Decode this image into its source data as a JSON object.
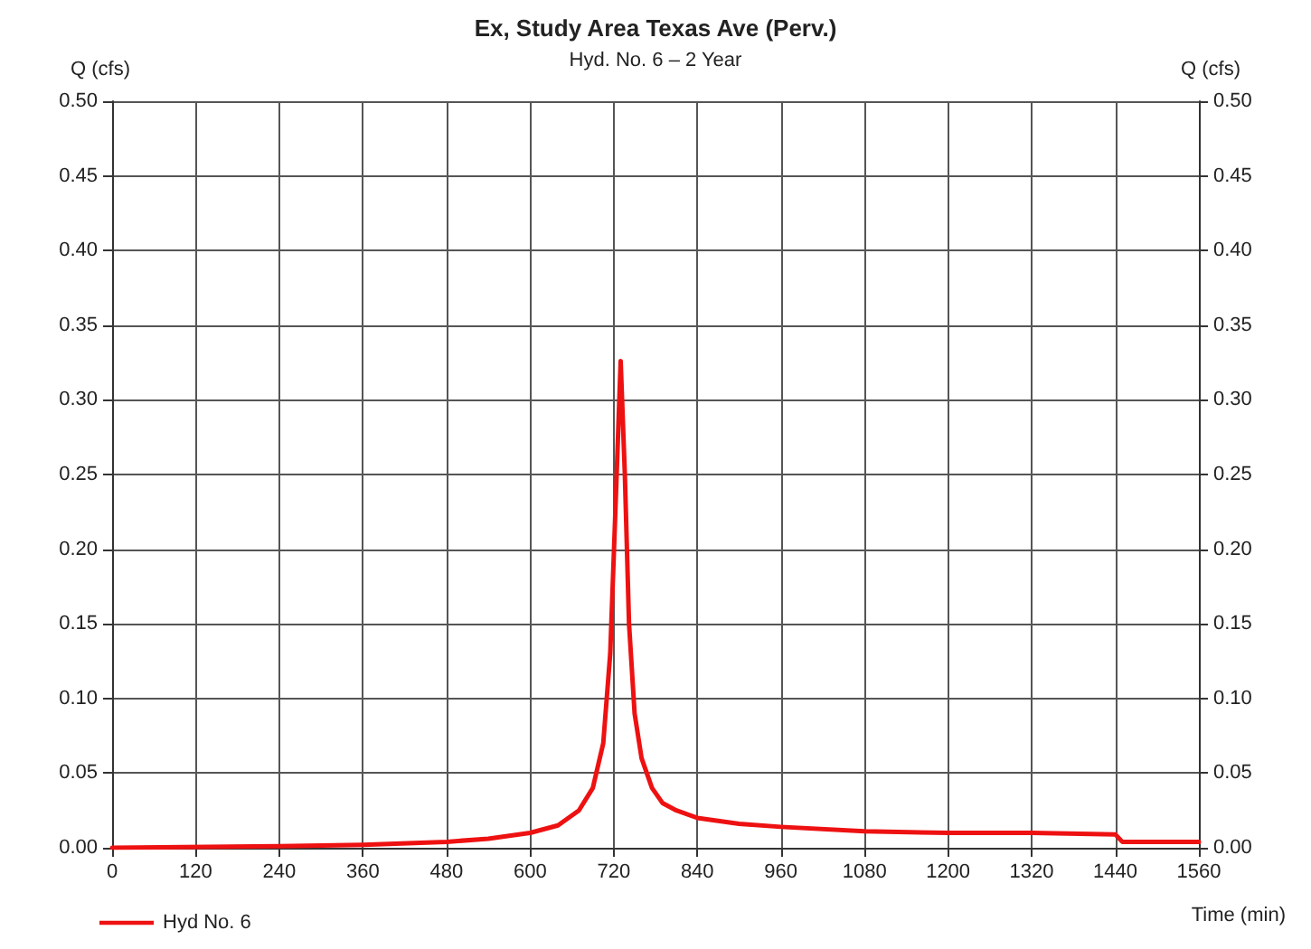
{
  "chart_data": {
    "type": "line",
    "title": "Ex, Study Area Texas Ave (Perv.)",
    "subtitle": "Hyd. No. 6 – 2 Year",
    "xlabel": "Time (min)",
    "ylabel": "Q (cfs)",
    "y2label": "Q (cfs)",
    "xlim": [
      0,
      1560
    ],
    "xticks": [
      0,
      120,
      240,
      360,
      480,
      600,
      720,
      840,
      960,
      1080,
      1200,
      1320,
      1440,
      1560
    ],
    "ylim": [
      0,
      0.5
    ],
    "yticks": [
      {
        "value": 0,
        "label": "0.00"
      },
      {
        "value": 0.05,
        "label": "0.05"
      },
      {
        "value": 0.1,
        "label": "0.10"
      },
      {
        "value": 0.15,
        "label": "0.15"
      },
      {
        "value": 0.2,
        "label": "0.20"
      },
      {
        "value": 0.25,
        "label": "0.25"
      },
      {
        "value": 0.3,
        "label": "0.30"
      },
      {
        "value": 0.35,
        "label": "0.35"
      },
      {
        "value": 0.4,
        "label": "0.40"
      },
      {
        "value": 0.45,
        "label": "0.45"
      },
      {
        "value": 0.5,
        "label": "0.50"
      }
    ],
    "y2lim": [
      0,
      0.5
    ],
    "y2ticks": [
      {
        "value": 0,
        "label": "0.00"
      },
      {
        "value": 0.05,
        "label": "0.05"
      },
      {
        "value": 0.1,
        "label": "0.10"
      },
      {
        "value": 0.15,
        "label": "0.15"
      },
      {
        "value": 0.2,
        "label": "0.20"
      },
      {
        "value": 0.25,
        "label": "0.25"
      },
      {
        "value": 0.3,
        "label": "0.30"
      },
      {
        "value": 0.35,
        "label": "0.35"
      },
      {
        "value": 0.4,
        "label": "0.40"
      },
      {
        "value": 0.45,
        "label": "0.45"
      },
      {
        "value": 0.5,
        "label": "0.50"
      }
    ],
    "grid": true,
    "legend": "bottom left",
    "marker": "none",
    "line_style": "solid",
    "series": [
      {
        "name": "Hyd No. 6",
        "color": "#ee1111",
        "x": [
          0,
          240,
          360,
          480,
          540,
          600,
          640,
          670,
          690,
          705,
          715,
          722,
          730,
          736,
          742,
          750,
          760,
          775,
          790,
          810,
          840,
          900,
          960,
          1080,
          1200,
          1320,
          1440,
          1450,
          1560
        ],
        "values": [
          0,
          0.001,
          0.002,
          0.004,
          0.006,
          0.01,
          0.015,
          0.025,
          0.04,
          0.07,
          0.13,
          0.22,
          0.326,
          0.25,
          0.15,
          0.09,
          0.06,
          0.04,
          0.03,
          0.025,
          0.02,
          0.016,
          0.014,
          0.011,
          0.01,
          0.01,
          0.009,
          0.004,
          0.004
        ]
      }
    ]
  }
}
